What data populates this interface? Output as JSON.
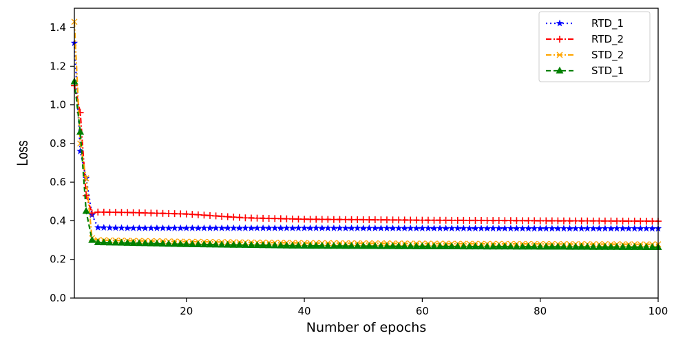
{
  "chart_data": {
    "type": "line",
    "title": "",
    "xlabel": "Number of epochs",
    "ylabel": "Loss",
    "xlim": [
      1,
      100
    ],
    "ylim": [
      0.0,
      1.5
    ],
    "x_ticks": [
      20,
      40,
      60,
      80,
      100
    ],
    "x_tick_labels": [
      "20",
      "40",
      "60",
      "80",
      "100"
    ],
    "y_ticks": [
      0.0,
      0.2,
      0.4,
      0.6,
      0.8,
      1.0,
      1.2,
      1.4
    ],
    "y_tick_labels": [
      "0.0",
      "0.2",
      "0.4",
      "0.6",
      "0.8",
      "1.0",
      "1.2",
      "1.4"
    ],
    "grid": false,
    "legend_position": "top-right",
    "series": [
      {
        "name": "RTD_1",
        "color": "#0000ff",
        "line_style": "dotted",
        "marker": "star",
        "keypoints": [
          [
            1,
            1.32
          ],
          [
            2,
            0.76
          ],
          [
            3,
            0.62
          ],
          [
            4,
            0.43
          ],
          [
            5,
            0.365
          ],
          [
            10,
            0.362
          ],
          [
            20,
            0.362
          ],
          [
            40,
            0.362
          ],
          [
            60,
            0.361
          ],
          [
            80,
            0.36
          ],
          [
            100,
            0.36
          ]
        ]
      },
      {
        "name": "RTD_2",
        "color": "#ff0000",
        "line_style": "dash-dot",
        "marker": "plus",
        "keypoints": [
          [
            1,
            1.1
          ],
          [
            2,
            0.96
          ],
          [
            3,
            0.53
          ],
          [
            4,
            0.44
          ],
          [
            5,
            0.445
          ],
          [
            10,
            0.443
          ],
          [
            20,
            0.435
          ],
          [
            30,
            0.415
          ],
          [
            40,
            0.408
          ],
          [
            60,
            0.403
          ],
          [
            80,
            0.4
          ],
          [
            100,
            0.398
          ]
        ]
      },
      {
        "name": "STD_2",
        "color": "#ffa500",
        "line_style": "dash-dot",
        "marker": "x",
        "keypoints": [
          [
            1,
            1.43
          ],
          [
            2,
            0.8
          ],
          [
            3,
            0.62
          ],
          [
            4,
            0.31
          ],
          [
            5,
            0.3
          ],
          [
            10,
            0.297
          ],
          [
            20,
            0.292
          ],
          [
            40,
            0.285
          ],
          [
            60,
            0.282
          ],
          [
            80,
            0.28
          ],
          [
            100,
            0.278
          ]
        ]
      },
      {
        "name": "STD_1",
        "color": "#008000",
        "line_style": "dashed",
        "marker": "triangle",
        "keypoints": [
          [
            1,
            1.12
          ],
          [
            2,
            0.86
          ],
          [
            3,
            0.45
          ],
          [
            4,
            0.3
          ],
          [
            5,
            0.288
          ],
          [
            10,
            0.285
          ],
          [
            20,
            0.278
          ],
          [
            40,
            0.27
          ],
          [
            60,
            0.267
          ],
          [
            80,
            0.265
          ],
          [
            100,
            0.263
          ]
        ]
      }
    ]
  }
}
